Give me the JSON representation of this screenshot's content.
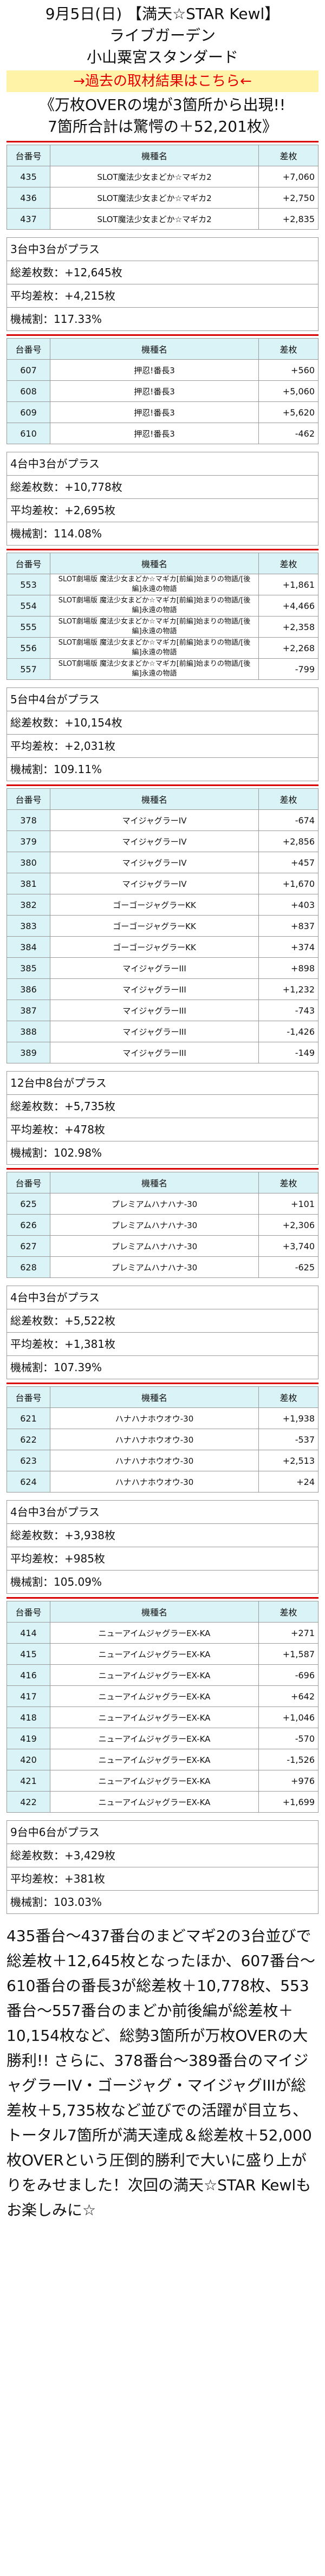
{
  "header": {
    "title": "9月5日(日) 【満天☆STAR Kewl】",
    "store": "ライブガーデン",
    "branch": "小山粟宮スタンダード",
    "link": "→過去の取材結果はこちら←",
    "headline1": "《万枚OVERの塊が3箇所から出現!!",
    "headline2": "7箇所合計は驚愕の＋52,201枚》"
  },
  "columns": {
    "num": "台番号",
    "name": "機種名",
    "diff": "差枚"
  },
  "sections": [
    {
      "rows": [
        {
          "num": "435",
          "name": "SLOT魔法少女まどか☆マギカ2",
          "diff": "+7,060"
        },
        {
          "num": "436",
          "name": "SLOT魔法少女まどか☆マギカ2",
          "diff": "+2,750"
        },
        {
          "num": "437",
          "name": "SLOT魔法少女まどか☆マギカ2",
          "diff": "+2,835"
        }
      ],
      "stats": {
        "plus": "3台中3台がプラス",
        "total": "総差枚数：+12,645枚",
        "avg": "平均差枚：+4,215枚",
        "rate": "機械割：117.33%"
      }
    },
    {
      "rows": [
        {
          "num": "607",
          "name": "押忍!番長3",
          "diff": "+560"
        },
        {
          "num": "608",
          "name": "押忍!番長3",
          "diff": "+5,060"
        },
        {
          "num": "609",
          "name": "押忍!番長3",
          "diff": "+5,620"
        },
        {
          "num": "610",
          "name": "押忍!番長3",
          "diff": "-462"
        }
      ],
      "stats": {
        "plus": "4台中3台がプラス",
        "total": "総差枚数：+10,778枚",
        "avg": "平均差枚：+2,695枚",
        "rate": "機械割：114.08%"
      }
    },
    {
      "small": true,
      "rows": [
        {
          "num": "553",
          "name": "SLOT劇場版 魔法少女まどか☆マギカ[前編]始まりの物語/[後編]永遠の物語",
          "diff": "+1,861"
        },
        {
          "num": "554",
          "name": "SLOT劇場版 魔法少女まどか☆マギカ[前編]始まりの物語/[後編]永遠の物語",
          "diff": "+4,466"
        },
        {
          "num": "555",
          "name": "SLOT劇場版 魔法少女まどか☆マギカ[前編]始まりの物語/[後編]永遠の物語",
          "diff": "+2,358"
        },
        {
          "num": "556",
          "name": "SLOT劇場版 魔法少女まどか☆マギカ[前編]始まりの物語/[後編]永遠の物語",
          "diff": "+2,268"
        },
        {
          "num": "557",
          "name": "SLOT劇場版 魔法少女まどか☆マギカ[前編]始まりの物語/[後編]永遠の物語",
          "diff": "-799"
        }
      ],
      "stats": {
        "plus": "5台中4台がプラス",
        "total": "総差枚数：+10,154枚",
        "avg": "平均差枚：+2,031枚",
        "rate": "機械割：109.11%"
      }
    },
    {
      "rows": [
        {
          "num": "378",
          "name": "マイジャグラーIV",
          "diff": "-674"
        },
        {
          "num": "379",
          "name": "マイジャグラーIV",
          "diff": "+2,856"
        },
        {
          "num": "380",
          "name": "マイジャグラーIV",
          "diff": "+457"
        },
        {
          "num": "381",
          "name": "マイジャグラーIV",
          "diff": "+1,670"
        },
        {
          "num": "382",
          "name": "ゴーゴージャグラーKK",
          "diff": "+403"
        },
        {
          "num": "383",
          "name": "ゴーゴージャグラーKK",
          "diff": "+837"
        },
        {
          "num": "384",
          "name": "ゴーゴージャグラーKK",
          "diff": "+374"
        },
        {
          "num": "385",
          "name": "マイジャグラーIII",
          "diff": "+898"
        },
        {
          "num": "386",
          "name": "マイジャグラーIII",
          "diff": "+1,232"
        },
        {
          "num": "387",
          "name": "マイジャグラーIII",
          "diff": "-743"
        },
        {
          "num": "388",
          "name": "マイジャグラーIII",
          "diff": "-1,426"
        },
        {
          "num": "389",
          "name": "マイジャグラーIII",
          "diff": "-149"
        }
      ],
      "stats": {
        "plus": "12台中8台がプラス",
        "total": "総差枚数：+5,735枚",
        "avg": "平均差枚：+478枚",
        "rate": "機械割：102.98%"
      }
    },
    {
      "rows": [
        {
          "num": "625",
          "name": "プレミアムハナハナ-30",
          "diff": "+101"
        },
        {
          "num": "626",
          "name": "プレミアムハナハナ-30",
          "diff": "+2,306"
        },
        {
          "num": "627",
          "name": "プレミアムハナハナ-30",
          "diff": "+3,740"
        },
        {
          "num": "628",
          "name": "プレミアムハナハナ-30",
          "diff": "-625"
        }
      ],
      "stats": {
        "plus": "4台中3台がプラス",
        "total": "総差枚数：+5,522枚",
        "avg": "平均差枚：+1,381枚",
        "rate": "機械割：107.39%"
      }
    },
    {
      "rows": [
        {
          "num": "621",
          "name": "ハナハナホウオウ-30",
          "diff": "+1,938"
        },
        {
          "num": "622",
          "name": "ハナハナホウオウ-30",
          "diff": "-537"
        },
        {
          "num": "623",
          "name": "ハナハナホウオウ-30",
          "diff": "+2,513"
        },
        {
          "num": "624",
          "name": "ハナハナホウオウ-30",
          "diff": "+24"
        }
      ],
      "stats": {
        "plus": "4台中3台がプラス",
        "total": "総差枚数：+3,938枚",
        "avg": "平均差枚：+985枚",
        "rate": "機械割：105.09%"
      }
    },
    {
      "rows": [
        {
          "num": "414",
          "name": "ニューアイムジャグラーEX-KA",
          "diff": "+271"
        },
        {
          "num": "415",
          "name": "ニューアイムジャグラーEX-KA",
          "diff": "+1,587"
        },
        {
          "num": "416",
          "name": "ニューアイムジャグラーEX-KA",
          "diff": "-696"
        },
        {
          "num": "417",
          "name": "ニューアイムジャグラーEX-KA",
          "diff": "+642"
        },
        {
          "num": "418",
          "name": "ニューアイムジャグラーEX-KA",
          "diff": "+1,046"
        },
        {
          "num": "419",
          "name": "ニューアイムジャグラーEX-KA",
          "diff": "-570"
        },
        {
          "num": "420",
          "name": "ニューアイムジャグラーEX-KA",
          "diff": "-1,526"
        },
        {
          "num": "421",
          "name": "ニューアイムジャグラーEX-KA",
          "diff": "+976"
        },
        {
          "num": "422",
          "name": "ニューアイムジャグラーEX-KA",
          "diff": "+1,699"
        }
      ],
      "stats": {
        "plus": "9台中6台がプラス",
        "total": "総差枚数：+3,429枚",
        "avg": "平均差枚：+381枚",
        "rate": "機械割：103.03%"
      }
    }
  ],
  "summary": "435番台～437番台のまどマギ2の3台並びで総差枚＋12,645枚となったほか、607番台～610番台の番長3が総差枚＋10,778枚、553番台～557番台のまどか前後編が総差枚＋10,154枚など、総勢3箇所が万枚OVERの大勝利!! さらに、378番台～389番台のマイジャグラーIV・ゴージャグ・マイジャグIIIが総差枚＋5,735枚など並びでの活躍が目立ち、トータル7箇所が満天達成＆総差枚＋52,000枚OVERという圧倒的勝利で大いに盛り上がりをみせました！次回の満天☆STAR Kewlもお楽しみに☆"
}
